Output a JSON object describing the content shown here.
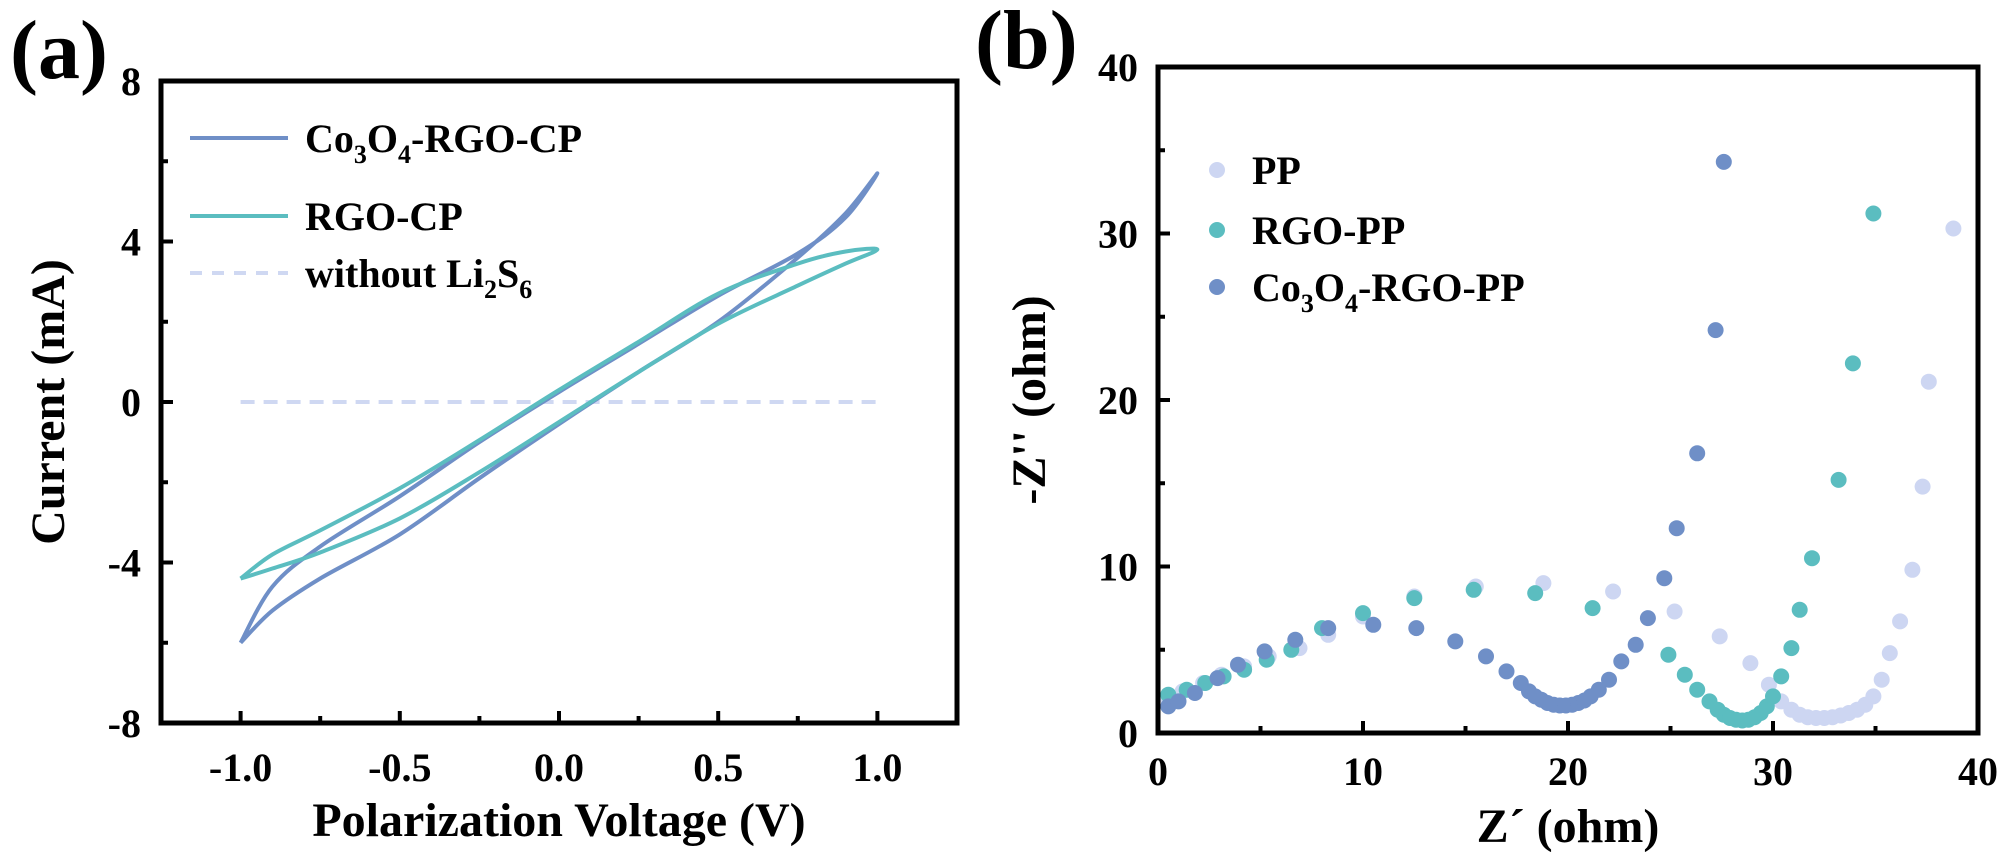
{
  "chart_data": [
    {
      "panel_label": "(a)",
      "type": "line",
      "title": "",
      "xlabel": "Polarization Voltage (V)",
      "ylabel": "Current (mA)",
      "xlim": [
        -1.25,
        1.25
      ],
      "ylim": [
        -8,
        8
      ],
      "xticks": [
        -1.0,
        -0.5,
        0.0,
        0.5,
        1.0
      ],
      "xtick_labels": [
        "-1.0",
        "-0.5",
        "0.0",
        "0.5",
        "1.0"
      ],
      "yticks": [
        -8,
        -4,
        0,
        4,
        8
      ],
      "ytick_labels": [
        "-8",
        "-4",
        "0",
        "4",
        "8"
      ],
      "grid": false,
      "legend_position": "top-left",
      "series": [
        {
          "name": "Co3O4-RGO-CP",
          "legend_main": "Co",
          "legend_parts": [
            [
              "Co",
              ""
            ],
            [
              "3",
              "sub"
            ],
            [
              "O",
              ""
            ],
            [
              "4",
              "sub"
            ],
            [
              "-RGO-CP",
              ""
            ]
          ],
          "color": "#6f8fc7",
          "style": "solid",
          "x": [
            -1.0,
            -0.9,
            -0.75,
            -0.5,
            -0.25,
            0.0,
            0.25,
            0.5,
            0.75,
            0.9,
            1.0,
            0.9,
            0.75,
            0.5,
            0.25,
            0.0,
            -0.25,
            -0.5,
            -0.75,
            -0.9,
            -1.0
          ],
          "y": [
            -6.0,
            -5.2,
            -4.4,
            -3.3,
            -1.9,
            -0.55,
            0.75,
            2.0,
            3.6,
            4.7,
            5.7,
            4.6,
            3.7,
            2.65,
            1.45,
            0.25,
            -1.0,
            -2.35,
            -3.6,
            -4.6,
            -6.0
          ]
        },
        {
          "name": "RGO-CP",
          "legend_parts": [
            [
              "RGO-CP",
              ""
            ]
          ],
          "color": "#5bbdc0",
          "style": "solid",
          "x": [
            -1.0,
            -0.9,
            -0.75,
            -0.5,
            -0.25,
            0.0,
            0.25,
            0.5,
            0.75,
            0.9,
            1.0,
            0.9,
            0.75,
            0.5,
            0.25,
            0.0,
            -0.25,
            -0.5,
            -0.75,
            -0.9,
            -1.0
          ],
          "y": [
            -4.4,
            -4.15,
            -3.75,
            -2.9,
            -1.75,
            -0.5,
            0.75,
            1.95,
            2.9,
            3.45,
            3.8,
            3.75,
            3.45,
            2.7,
            1.5,
            0.3,
            -0.95,
            -2.15,
            -3.2,
            -3.8,
            -4.4
          ]
        },
        {
          "name": "without Li2S6",
          "legend_parts": [
            [
              "without Li",
              ""
            ],
            [
              "2",
              "sub"
            ],
            [
              "S",
              ""
            ],
            [
              "6",
              "sub"
            ]
          ],
          "color": "#cfd8f2",
          "style": "dashed",
          "x": [
            -1.0,
            1.0
          ],
          "y": [
            0,
            0
          ]
        }
      ]
    },
    {
      "panel_label": "(b)",
      "type": "scatter",
      "title": "",
      "xlabel": "Z´ (ohm)",
      "ylabel": "-Z'' (ohm)",
      "xlim": [
        0,
        40
      ],
      "ylim": [
        0,
        40
      ],
      "xticks": [
        0,
        10,
        20,
        30,
        40
      ],
      "xtick_labels": [
        "0",
        "10",
        "20",
        "30",
        "40"
      ],
      "yticks": [
        0,
        10,
        20,
        30,
        40
      ],
      "ytick_labels": [
        "0",
        "10",
        "20",
        "30",
        "40"
      ],
      "grid": false,
      "legend_position": "top-left",
      "series": [
        {
          "name": "PP",
          "legend_parts": [
            [
              "PP",
              ""
            ]
          ],
          "color": "#cdd6f2",
          "x": [
            0.5,
            1.2,
            2.2,
            3.1,
            4.2,
            5.4,
            6.9,
            8.3,
            10.0,
            12.5,
            15.5,
            18.8,
            22.2,
            25.2,
            27.4,
            28.9,
            29.8,
            30.4,
            30.9,
            31.3,
            31.7,
            32.1,
            32.5,
            32.9,
            33.3,
            33.7,
            34.1,
            34.5,
            34.9,
            35.3,
            35.7,
            36.2,
            36.8,
            37.3,
            37.6,
            38.8
          ],
          "y": [
            2.0,
            2.5,
            3.0,
            3.5,
            4.0,
            4.6,
            5.1,
            5.9,
            7.0,
            8.2,
            8.8,
            9.0,
            8.5,
            7.3,
            5.8,
            4.2,
            2.9,
            1.9,
            1.4,
            1.1,
            0.95,
            0.9,
            0.9,
            0.95,
            1.05,
            1.2,
            1.4,
            1.7,
            2.2,
            3.2,
            4.8,
            6.7,
            9.8,
            14.8,
            21.1,
            30.3
          ]
        },
        {
          "name": "RGO-PP",
          "legend_parts": [
            [
              "RGO-PP",
              ""
            ]
          ],
          "color": "#5bbdc0",
          "x": [
            0.5,
            1.4,
            2.3,
            3.2,
            4.2,
            5.3,
            6.5,
            8.0,
            10.0,
            12.5,
            15.4,
            18.4,
            21.2,
            24.9,
            25.7,
            26.3,
            26.9,
            27.3,
            27.6,
            27.9,
            28.2,
            28.5,
            28.8,
            29.1,
            29.4,
            29.7,
            30.0,
            30.4,
            30.9,
            31.3,
            31.9,
            33.2,
            33.9,
            34.9
          ],
          "y": [
            2.3,
            2.6,
            3.0,
            3.4,
            3.8,
            4.4,
            5.0,
            6.3,
            7.2,
            8.1,
            8.6,
            8.4,
            7.5,
            4.7,
            3.5,
            2.6,
            1.9,
            1.4,
            1.1,
            0.9,
            0.8,
            0.75,
            0.8,
            0.95,
            1.2,
            1.6,
            2.2,
            3.4,
            5.1,
            7.4,
            10.5,
            15.2,
            22.2,
            31.2
          ]
        },
        {
          "name": "Co3O4-RGO-PP",
          "legend_parts": [
            [
              "Co",
              ""
            ],
            [
              "3",
              "sub"
            ],
            [
              "O",
              ""
            ],
            [
              "4",
              "sub"
            ],
            [
              "-RGO-PP",
              ""
            ]
          ],
          "color": "#6f8fc7",
          "x": [
            0.5,
            1.0,
            1.8,
            2.9,
            3.9,
            5.2,
            6.7,
            8.3,
            10.5,
            12.6,
            14.5,
            16.0,
            17.0,
            17.7,
            18.1,
            18.4,
            18.7,
            19.0,
            19.3,
            19.6,
            19.9,
            20.2,
            20.5,
            20.8,
            21.1,
            21.5,
            22.0,
            22.6,
            23.3,
            23.9,
            24.7,
            25.3,
            26.3,
            27.2,
            27.6
          ],
          "y": [
            1.6,
            1.9,
            2.4,
            3.3,
            4.1,
            4.9,
            5.6,
            6.3,
            6.5,
            6.3,
            5.5,
            4.6,
            3.7,
            3.0,
            2.5,
            2.2,
            2.0,
            1.8,
            1.7,
            1.65,
            1.65,
            1.7,
            1.8,
            1.95,
            2.2,
            2.6,
            3.2,
            4.3,
            5.3,
            6.9,
            9.3,
            12.3,
            16.8,
            24.2,
            34.3
          ]
        }
      ]
    }
  ]
}
